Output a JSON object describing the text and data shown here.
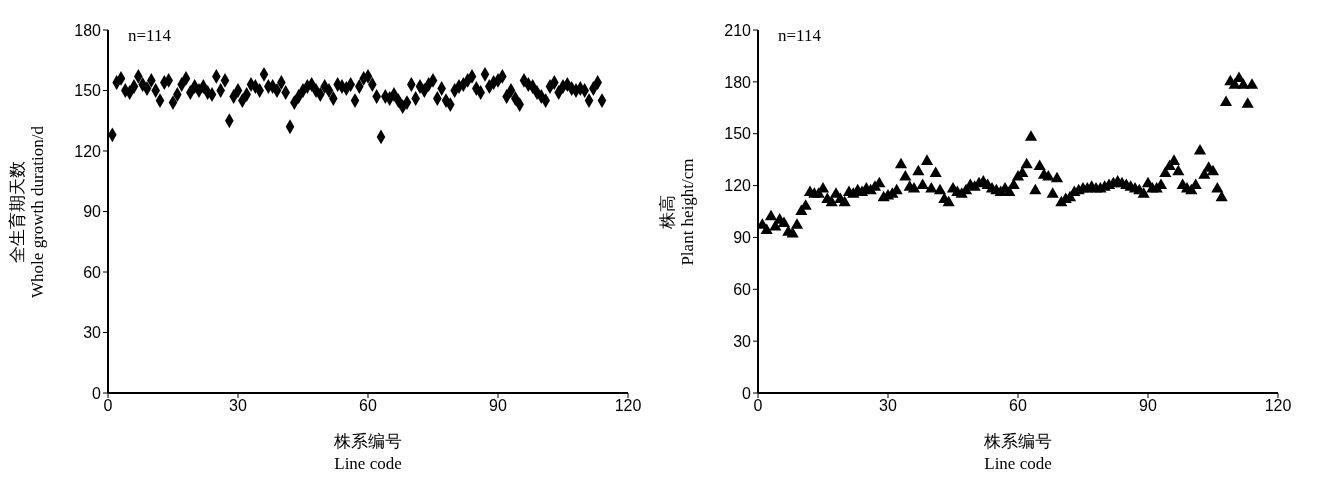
{
  "chart_data": [
    {
      "type": "scatter",
      "ylabel": "全生育期天数\nWhole growth duration/d",
      "xlabel": "株系编号\nLine code",
      "annotations": [
        "n=114"
      ],
      "marker": "diamond",
      "color": "#000000",
      "grid": false,
      "legend": false,
      "x": [
        1,
        2,
        3,
        4,
        5,
        6,
        7,
        8,
        9,
        10,
        11,
        12,
        13,
        14,
        15,
        16,
        17,
        18,
        19,
        20,
        21,
        22,
        23,
        24,
        25,
        26,
        27,
        28,
        29,
        30,
        31,
        32,
        33,
        34,
        35,
        36,
        37,
        38,
        39,
        40,
        41,
        42,
        43,
        44,
        45,
        46,
        47,
        48,
        49,
        50,
        51,
        52,
        53,
        54,
        55,
        56,
        57,
        58,
        59,
        60,
        61,
        62,
        63,
        64,
        65,
        66,
        67,
        68,
        69,
        70,
        71,
        72,
        73,
        74,
        75,
        76,
        77,
        78,
        79,
        80,
        81,
        82,
        83,
        84,
        85,
        86,
        87,
        88,
        89,
        90,
        91,
        92,
        93,
        94,
        95,
        96,
        97,
        98,
        99,
        100,
        101,
        102,
        103,
        104,
        105,
        106,
        107,
        108,
        109,
        110,
        111,
        112,
        113,
        114
      ],
      "values": [
        128,
        154,
        156,
        150,
        149,
        152,
        157,
        153,
        151,
        155,
        150,
        145,
        154,
        155,
        144,
        148,
        153,
        156,
        149,
        152,
        150,
        152,
        149,
        148,
        157,
        150,
        155,
        135,
        147,
        150,
        145,
        148,
        153,
        152,
        150,
        158,
        152,
        152,
        150,
        154,
        149,
        132,
        144,
        147,
        150,
        152,
        153,
        150,
        148,
        152,
        150,
        146,
        153,
        152,
        151,
        153,
        145,
        152,
        156,
        157,
        153,
        147,
        127,
        147,
        146,
        148,
        145,
        142,
        144,
        153,
        146,
        152,
        150,
        153,
        155,
        146,
        151,
        145,
        143,
        150,
        152,
        153,
        155,
        157,
        151,
        149,
        158,
        152,
        154,
        155,
        157,
        147,
        150,
        146,
        143,
        155,
        153,
        152,
        149,
        147,
        145,
        152,
        154,
        149,
        152,
        153,
        151,
        150,
        151,
        150,
        145,
        151,
        154,
        145
      ],
      "xlim": [
        0,
        120
      ],
      "xticks": [
        0,
        30,
        60,
        90,
        120
      ],
      "ylim": [
        0,
        180
      ],
      "yticks": [
        0,
        30,
        60,
        90,
        120,
        150,
        180
      ]
    },
    {
      "type": "scatter",
      "ylabel": "株高\nPlant height/cm",
      "xlabel": "株系编号\nLine code",
      "annotations": [
        "n=114"
      ],
      "marker": "triangle",
      "color": "#000000",
      "grid": false,
      "legend": false,
      "x": [
        1,
        2,
        3,
        4,
        5,
        6,
        7,
        8,
        9,
        10,
        11,
        12,
        13,
        14,
        15,
        16,
        17,
        18,
        19,
        20,
        21,
        22,
        23,
        24,
        25,
        26,
        27,
        28,
        29,
        30,
        31,
        32,
        33,
        34,
        35,
        36,
        37,
        38,
        39,
        40,
        41,
        42,
        43,
        44,
        45,
        46,
        47,
        48,
        49,
        50,
        51,
        52,
        53,
        54,
        55,
        56,
        57,
        58,
        59,
        60,
        61,
        62,
        63,
        64,
        65,
        66,
        67,
        68,
        69,
        70,
        71,
        72,
        73,
        74,
        75,
        76,
        77,
        78,
        79,
        80,
        81,
        82,
        83,
        84,
        85,
        86,
        87,
        88,
        89,
        90,
        91,
        92,
        93,
        94,
        95,
        96,
        97,
        98,
        99,
        100,
        101,
        102,
        103,
        104,
        105,
        106,
        107,
        108,
        109,
        110,
        111,
        112,
        113,
        114
      ],
      "values": [
        97,
        94,
        102,
        96,
        100,
        98,
        93,
        92,
        97,
        105,
        108,
        116,
        115,
        115,
        118,
        112,
        110,
        115,
        112,
        110,
        116,
        115,
        117,
        116,
        118,
        117,
        119,
        121,
        113,
        114,
        115,
        117,
        132,
        125,
        119,
        118,
        128,
        120,
        134,
        118,
        127,
        117,
        112,
        110,
        118,
        116,
        115,
        117,
        120,
        119,
        121,
        122,
        120,
        118,
        117,
        116,
        118,
        116,
        120,
        125,
        127,
        132,
        148,
        117,
        131,
        126,
        125,
        115,
        124,
        110,
        112,
        113,
        116,
        117,
        118,
        118,
        119,
        118,
        118,
        119,
        120,
        121,
        122,
        121,
        120,
        119,
        118,
        117,
        115,
        121,
        118,
        118,
        120,
        127,
        131,
        134,
        128,
        120,
        118,
        117,
        120,
        140,
        126,
        130,
        128,
        118,
        113,
        168,
        180,
        178,
        182,
        178,
        167,
        178
      ],
      "xlim": [
        0,
        120
      ],
      "xticks": [
        0,
        30,
        60,
        90,
        120
      ],
      "ylim": [
        0,
        210
      ],
      "yticks": [
        0,
        30,
        60,
        90,
        120,
        150,
        180,
        210
      ]
    }
  ]
}
